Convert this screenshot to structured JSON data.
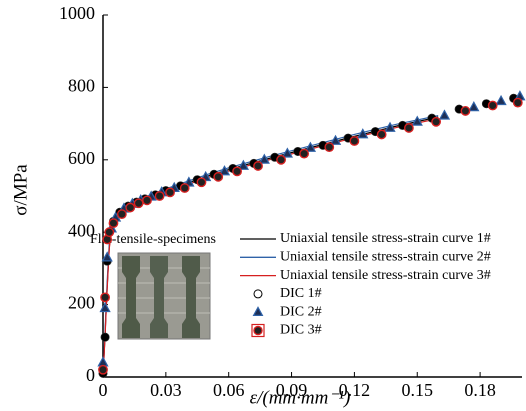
{
  "chart_data": {
    "type": "line",
    "x_label": "ε/(mm·mm⁻¹)",
    "y_label": "σ/MPa",
    "annotation": "Flat-tensile-specimens",
    "xlim": [
      0,
      0.2
    ],
    "ylim": [
      0,
      1000
    ],
    "xticks": [
      0,
      0.03,
      0.06,
      0.09,
      0.12,
      0.15,
      0.18
    ],
    "yticks": [
      0,
      200,
      400,
      600,
      800,
      1000
    ],
    "series": [
      {
        "name": "Uniaxial tensile stress-strain curve 1#",
        "color": "#000000",
        "mode": "line",
        "x": [
          0,
          0.001,
          0.002,
          0.003,
          0.004,
          0.006,
          0.008,
          0.01,
          0.015,
          0.02,
          0.03,
          0.04,
          0.05,
          0.06,
          0.08,
          0.1,
          0.12,
          0.14,
          0.16
        ],
        "values": [
          0,
          120,
          250,
          360,
          410,
          440,
          455,
          465,
          480,
          492,
          515,
          535,
          555,
          573,
          605,
          635,
          665,
          693,
          718
        ]
      },
      {
        "name": "Uniaxial tensile stress-strain curve 2#",
        "color": "#2f62a8",
        "mode": "line",
        "x": [
          0,
          0.001,
          0.002,
          0.003,
          0.004,
          0.006,
          0.008,
          0.01,
          0.015,
          0.02,
          0.03,
          0.04,
          0.05,
          0.06,
          0.08,
          0.1,
          0.12,
          0.14,
          0.16
        ],
        "values": [
          0,
          130,
          265,
          370,
          415,
          445,
          460,
          470,
          485,
          497,
          520,
          540,
          560,
          578,
          610,
          640,
          670,
          698,
          722
        ]
      },
      {
        "name": "Uniaxial tensile stress-strain curve 3#",
        "color": "#d62020",
        "mode": "line",
        "x": [
          0,
          0.001,
          0.002,
          0.003,
          0.004,
          0.006,
          0.008,
          0.01,
          0.015,
          0.02,
          0.03,
          0.04,
          0.05,
          0.06,
          0.08,
          0.1,
          0.12,
          0.14,
          0.16
        ],
        "values": [
          0,
          115,
          245,
          355,
          405,
          436,
          451,
          461,
          476,
          488,
          511,
          531,
          551,
          569,
          601,
          631,
          661,
          689,
          714
        ]
      },
      {
        "name": "DIC 1#",
        "color": "#000000",
        "mode": "markers",
        "marker": "circle",
        "x": [
          0,
          0.001,
          0.002,
          0.003,
          0.005,
          0.008,
          0.012,
          0.016,
          0.02,
          0.025,
          0.03,
          0.037,
          0.045,
          0.053,
          0.062,
          0.072,
          0.082,
          0.093,
          0.105,
          0.117,
          0.13,
          0.143,
          0.157,
          0.17,
          0.183,
          0.196
        ],
        "values": [
          10,
          110,
          320,
          400,
          430,
          455,
          472,
          483,
          492,
          503,
          515,
          528,
          545,
          560,
          576,
          590,
          607,
          623,
          640,
          660,
          678,
          695,
          715,
          740,
          755,
          770
        ]
      },
      {
        "name": "DIC 2#",
        "color": "#2f62a8",
        "mode": "markers",
        "marker": "triangle",
        "x": [
          0,
          0.001,
          0.002,
          0.004,
          0.006,
          0.01,
          0.014,
          0.018,
          0.023,
          0.028,
          0.034,
          0.041,
          0.049,
          0.058,
          0.067,
          0.077,
          0.088,
          0.099,
          0.111,
          0.124,
          0.137,
          0.15,
          0.163,
          0.177,
          0.19,
          0.199
        ],
        "values": [
          40,
          190,
          330,
          410,
          440,
          465,
          478,
          488,
          498,
          510,
          522,
          537,
          552,
          568,
          583,
          600,
          617,
          633,
          652,
          670,
          688,
          705,
          722,
          745,
          762,
          775
        ]
      },
      {
        "name": "DIC 3#",
        "color": "#d62020",
        "mode": "markers",
        "marker": "square",
        "x": [
          0,
          0.001,
          0.002,
          0.003,
          0.005,
          0.009,
          0.013,
          0.017,
          0.021,
          0.027,
          0.032,
          0.039,
          0.047,
          0.055,
          0.064,
          0.074,
          0.085,
          0.096,
          0.108,
          0.12,
          0.133,
          0.146,
          0.159,
          0.173,
          0.186,
          0.198
        ],
        "values": [
          20,
          220,
          380,
          400,
          425,
          450,
          468,
          480,
          488,
          500,
          510,
          522,
          538,
          553,
          568,
          583,
          600,
          617,
          635,
          652,
          670,
          688,
          705,
          735,
          750,
          758
        ]
      }
    ]
  }
}
